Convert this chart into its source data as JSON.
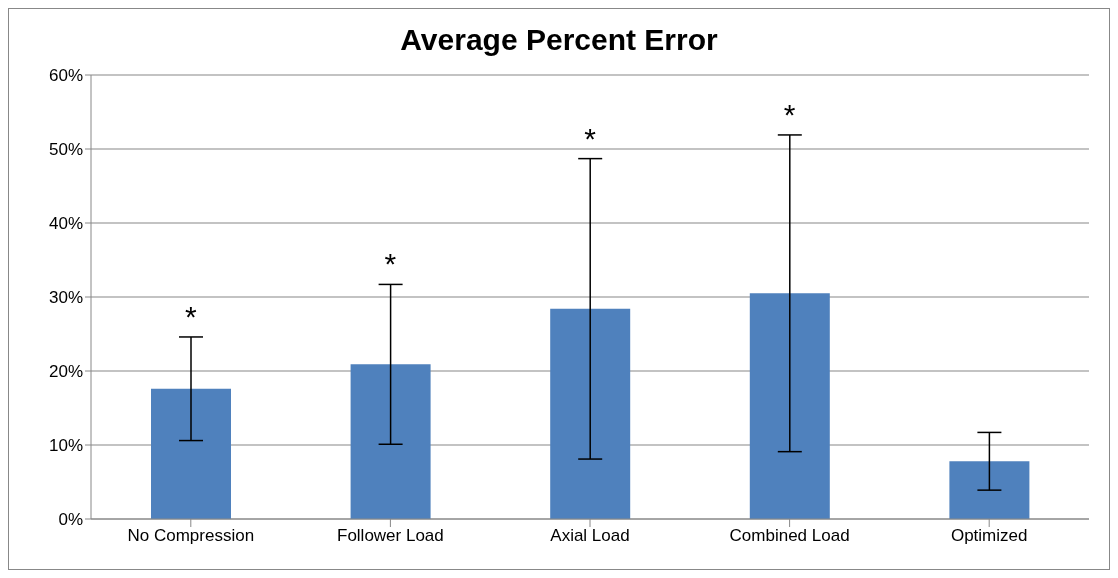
{
  "chart_data": {
    "type": "bar",
    "title": "Average Percent Error",
    "categories": [
      "No Compression",
      "Follower Load",
      "Axial Load",
      "Combined Load",
      "Optimized"
    ],
    "values": [
      17.6,
      20.9,
      28.4,
      30.5,
      7.8
    ],
    "errors": [
      7,
      10.8,
      20.3,
      21.4,
      3.9
    ],
    "color": "#4f81bd",
    "ylim": [
      0,
      60
    ],
    "yticks": [
      {
        "value": 0,
        "label": "0%"
      },
      {
        "value": 10,
        "label": "10%"
      },
      {
        "value": 20,
        "label": "20%"
      },
      {
        "value": 30,
        "label": "30%"
      },
      {
        "value": 40,
        "label": "40%"
      },
      {
        "value": 50,
        "label": "50%"
      },
      {
        "value": 60,
        "label": "60%"
      }
    ],
    "grid": "y",
    "annotations": [
      "*",
      "*",
      "*",
      "*"
    ]
  }
}
